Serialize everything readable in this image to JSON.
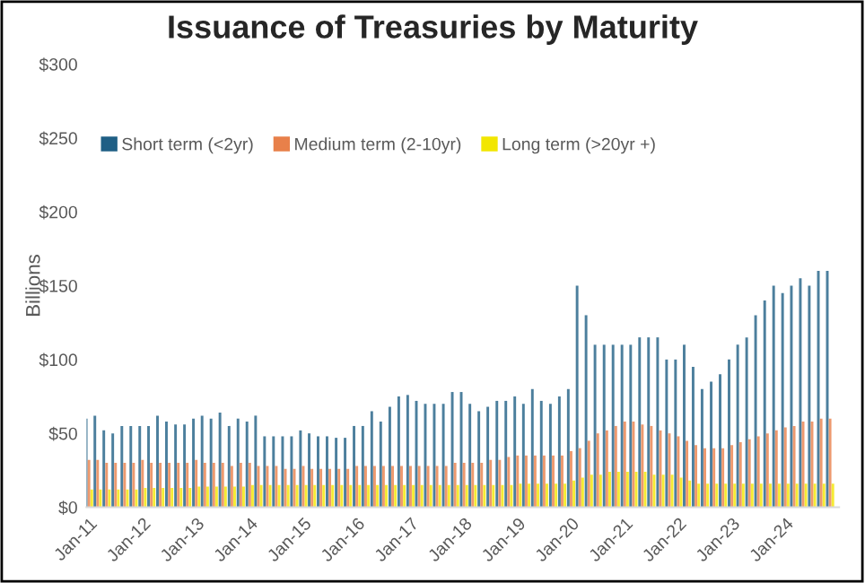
{
  "chart_data": {
    "type": "bar",
    "title": "Issuance of Treasuries by Maturity",
    "ylabel": "Billions",
    "x": [
      "2011-01",
      "2011-03",
      "2011-05",
      "2011-07",
      "2011-09",
      "2011-11",
      "2012-01",
      "2012-03",
      "2012-05",
      "2012-07",
      "2012-09",
      "2012-11",
      "2013-01",
      "2013-03",
      "2013-05",
      "2013-07",
      "2013-09",
      "2013-11",
      "2014-01",
      "2014-03",
      "2014-05",
      "2014-07",
      "2014-09",
      "2014-11",
      "2015-01",
      "2015-03",
      "2015-05",
      "2015-07",
      "2015-09",
      "2015-11",
      "2016-01",
      "2016-03",
      "2016-05",
      "2016-07",
      "2016-09",
      "2016-11",
      "2017-01",
      "2017-03",
      "2017-05",
      "2017-07",
      "2017-09",
      "2017-11",
      "2018-01",
      "2018-03",
      "2018-05",
      "2018-07",
      "2018-09",
      "2018-11",
      "2019-01",
      "2019-03",
      "2019-05",
      "2019-07",
      "2019-09",
      "2019-11",
      "2020-01",
      "2020-03",
      "2020-05",
      "2020-07",
      "2020-09",
      "2020-11",
      "2021-01",
      "2021-03",
      "2021-05",
      "2021-07",
      "2021-09",
      "2021-11",
      "2022-01",
      "2022-03",
      "2022-05",
      "2022-07",
      "2022-09",
      "2022-11",
      "2023-01",
      "2023-03",
      "2023-05",
      "2023-07",
      "2023-09",
      "2023-11",
      "2024-01",
      "2024-03",
      "2024-05",
      "2024-07",
      "2024-09",
      "2024-11"
    ],
    "series": [
      {
        "name": "Short term (<2yr)",
        "color": "#1f5f85",
        "values": [
          60,
          62,
          52,
          50,
          55,
          55,
          55,
          55,
          62,
          58,
          56,
          56,
          60,
          62,
          60,
          64,
          55,
          60,
          58,
          62,
          48,
          48,
          48,
          48,
          52,
          50,
          48,
          48,
          47,
          47,
          55,
          55,
          65,
          58,
          68,
          75,
          76,
          72,
          70,
          70,
          70,
          78,
          78,
          70,
          65,
          68,
          72,
          72,
          75,
          70,
          80,
          72,
          70,
          75,
          80,
          150,
          130,
          110,
          110,
          110,
          110,
          110,
          115,
          115,
          115,
          100,
          100,
          110,
          95,
          80,
          85,
          90,
          100,
          110,
          115,
          130,
          140,
          150,
          145,
          150,
          155,
          150,
          160,
          160
        ]
      },
      {
        "name": "Medium term (2-10yr)",
        "color": "#e8804a",
        "values": [
          32,
          32,
          30,
          30,
          30,
          30,
          32,
          30,
          30,
          30,
          30,
          30,
          32,
          30,
          30,
          30,
          28,
          30,
          30,
          28,
          28,
          28,
          26,
          26,
          28,
          26,
          26,
          26,
          26,
          26,
          28,
          28,
          28,
          28,
          28,
          28,
          28,
          28,
          28,
          28,
          28,
          30,
          30,
          30,
          30,
          32,
          32,
          34,
          35,
          35,
          35,
          35,
          35,
          35,
          38,
          40,
          45,
          50,
          52,
          55,
          58,
          58,
          56,
          55,
          52,
          50,
          48,
          45,
          42,
          40,
          40,
          40,
          42,
          44,
          46,
          48,
          50,
          52,
          54,
          55,
          58,
          58,
          60,
          60
        ]
      },
      {
        "name": "Long term (>20yr +)",
        "color": "#f2e600",
        "values": [
          12,
          12,
          12,
          12,
          12,
          12,
          13,
          13,
          13,
          13,
          13,
          13,
          14,
          14,
          14,
          14,
          14,
          14,
          15,
          15,
          15,
          15,
          15,
          15,
          15,
          15,
          15,
          15,
          15,
          15,
          15,
          15,
          15,
          15,
          15,
          15,
          15,
          15,
          15,
          15,
          15,
          15,
          15,
          15,
          15,
          15,
          15,
          15,
          16,
          16,
          16,
          16,
          16,
          16,
          18,
          20,
          22,
          22,
          24,
          24,
          24,
          24,
          24,
          22,
          22,
          22,
          20,
          18,
          16,
          16,
          16,
          16,
          16,
          16,
          16,
          16,
          16,
          16,
          16,
          16,
          16,
          16,
          16,
          16
        ]
      }
    ],
    "ylim": [
      0,
      300
    ],
    "yticks": [
      {
        "value": 0,
        "label": "$0"
      },
      {
        "value": 50,
        "label": "$50"
      },
      {
        "value": 100,
        "label": "$100"
      },
      {
        "value": 150,
        "label": "$150"
      },
      {
        "value": 200,
        "label": "$200"
      },
      {
        "value": 250,
        "label": "$250"
      },
      {
        "value": 300,
        "label": "$300"
      }
    ],
    "xlim": [
      "2010-12-15",
      "2025-01-01"
    ],
    "xticks": [
      {
        "value": "2011-01-01",
        "label": "Jan-11"
      },
      {
        "value": "2012-01-01",
        "label": "Jan-12"
      },
      {
        "value": "2013-01-01",
        "label": "Jan-13"
      },
      {
        "value": "2014-01-01",
        "label": "Jan-14"
      },
      {
        "value": "2015-01-01",
        "label": "Jan-15"
      },
      {
        "value": "2016-01-01",
        "label": "Jan-16"
      },
      {
        "value": "2017-01-01",
        "label": "Jan-17"
      },
      {
        "value": "2018-01-01",
        "label": "Jan-18"
      },
      {
        "value": "2019-01-01",
        "label": "Jan-19"
      },
      {
        "value": "2020-01-01",
        "label": "Jan-20"
      },
      {
        "value": "2021-01-01",
        "label": "Jan-21"
      },
      {
        "value": "2022-01-01",
        "label": "Jan-22"
      },
      {
        "value": "2023-01-01",
        "label": "Jan-23"
      },
      {
        "value": "2024-01-01",
        "label": "Jan-24"
      }
    ],
    "grid": false,
    "legend": "top left"
  }
}
